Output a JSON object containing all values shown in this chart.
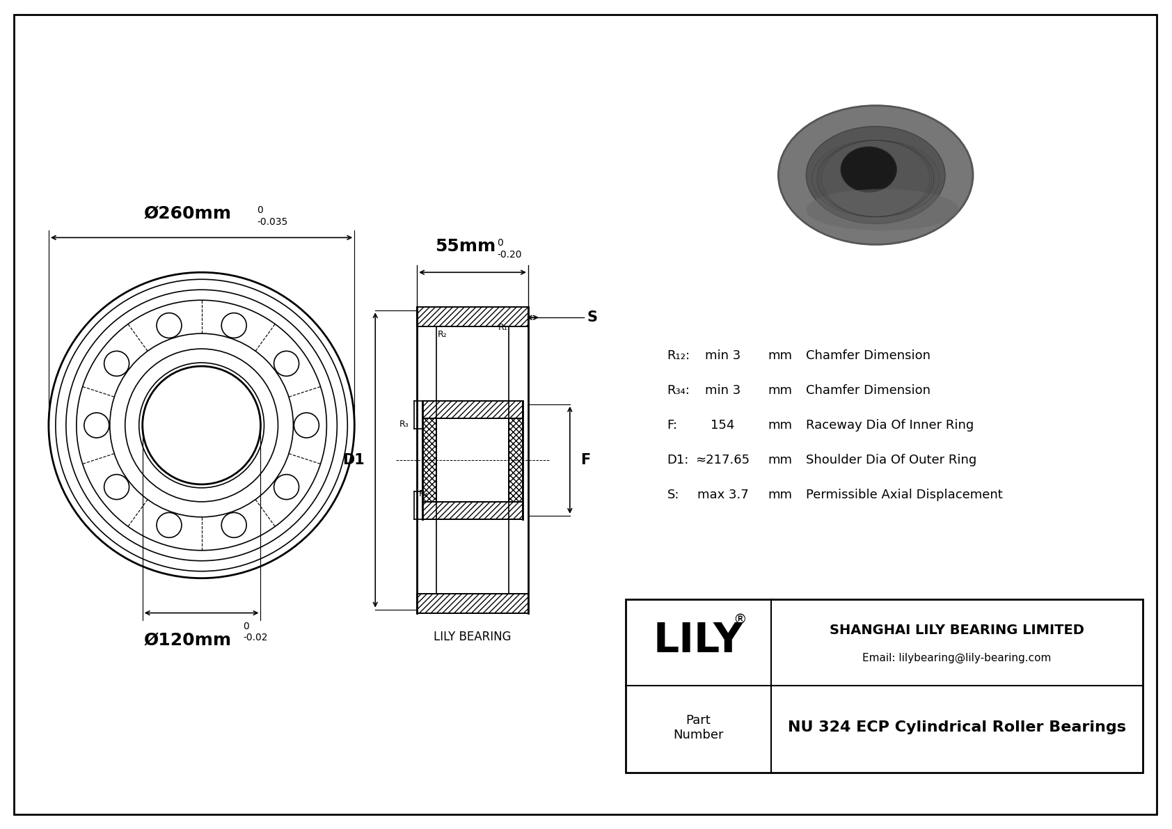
{
  "bg_color": "#ffffff",
  "line_color": "#000000",
  "title": "NU 324 ECP Cylindrical Roller Bearings",
  "company": "SHANGHAI LILY BEARING LIMITED",
  "email": "Email: lilybearing@lily-bearing.com",
  "lily_text": "LILY",
  "part_label": "Part\nNumber",
  "outer_dim_label": "Ø260mm",
  "outer_dim_tol_top": "0",
  "outer_dim_tol_bot": "-0.035",
  "inner_dim_label": "Ø120mm",
  "inner_dim_tol_top": "0",
  "inner_dim_tol_bot": "-0.02",
  "width_label": "55mm",
  "width_tol_top": "0",
  "width_tol_bot": "-0.20",
  "param_r12_label": "R₁₂:",
  "param_r12_val": "min 3",
  "param_r12_unit": "mm",
  "param_r12_desc": "Chamfer Dimension",
  "param_r34_label": "R₃₄:",
  "param_r34_val": "min 3",
  "param_r34_unit": "mm",
  "param_r34_desc": "Chamfer Dimension",
  "param_f_label": "F:",
  "param_f_val": "154",
  "param_f_unit": "mm",
  "param_f_desc": "Raceway Dia Of Inner Ring",
  "param_d1_label": "D1:",
  "param_d1_val": "≈217.65",
  "param_d1_unit": "mm",
  "param_d1_desc": "Shoulder Dia Of Outer Ring",
  "param_s_label": "S:",
  "param_s_val": "max 3.7",
  "param_s_unit": "mm",
  "param_s_desc": "Permissible Axial Displacement",
  "d1_label": "D1",
  "f_label": "F",
  "s_label": "S",
  "lily_bearing_label": "LILY BEARING"
}
